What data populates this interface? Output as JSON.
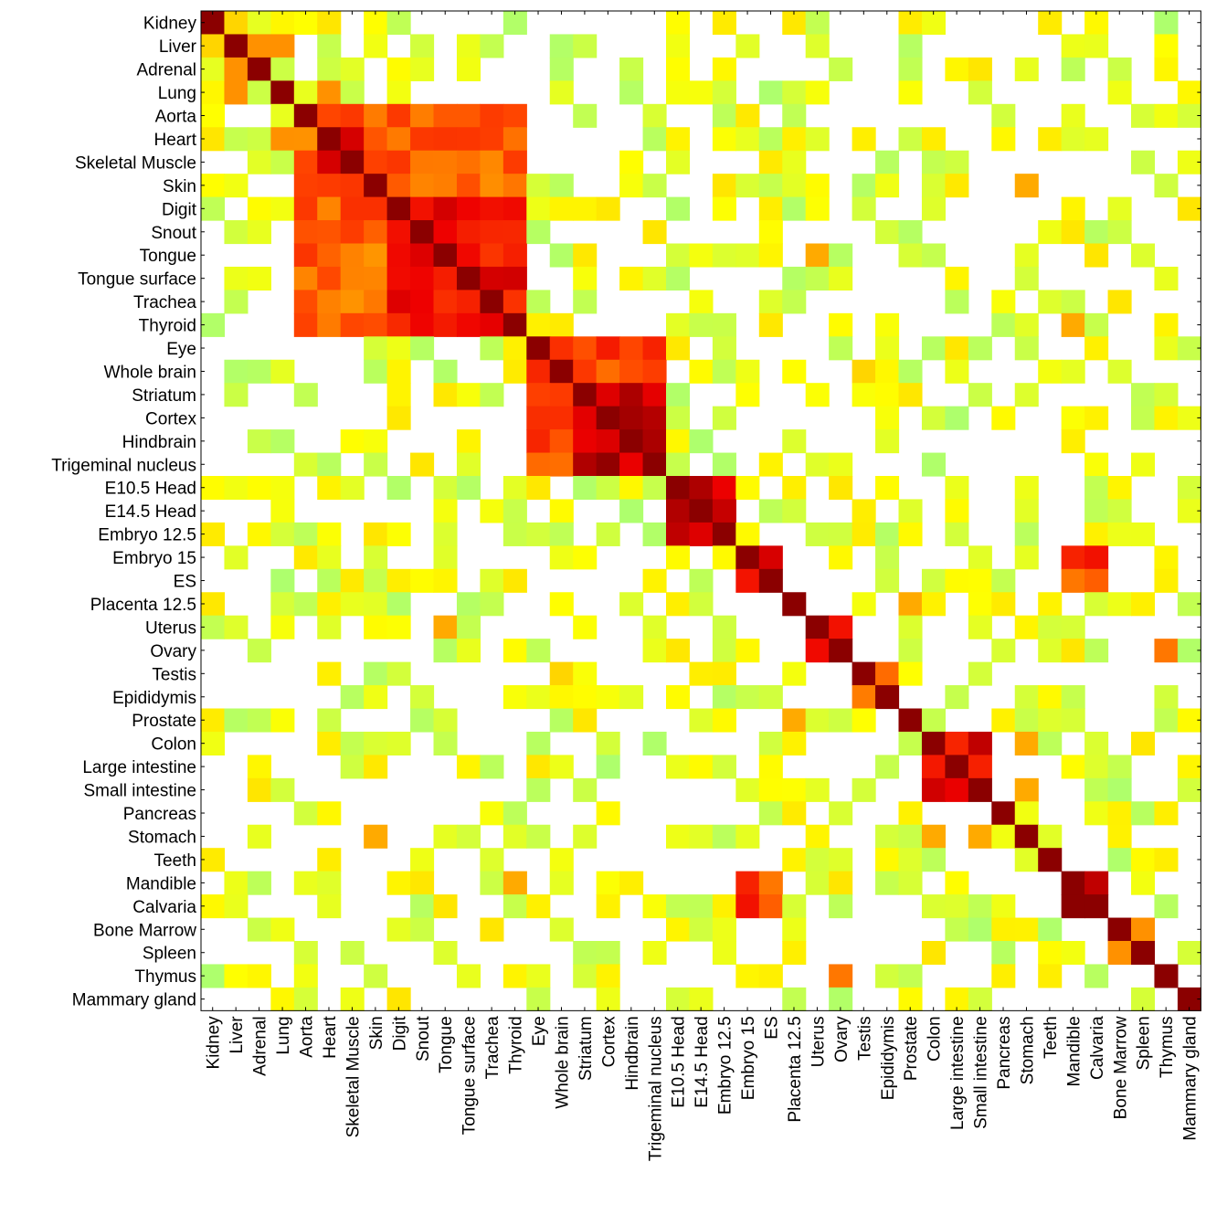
{
  "chart_data": {
    "type": "heatmap",
    "title": "",
    "xlabel": "",
    "ylabel": "",
    "labels": [
      "Kidney",
      "Liver",
      "Adrenal",
      "Lung",
      "Aorta",
      "Heart",
      "Skeletal Muscle",
      "Skin",
      "Digit",
      "Snout",
      "Tongue",
      "Tongue surface",
      "Trachea",
      "Thyroid",
      "Eye",
      "Whole brain",
      "Striatum",
      "Cortex",
      "Hindbrain",
      "Trigeminal nucleus",
      "E10.5 Head",
      "E14.5 Head",
      "Embryo 12.5",
      "Embryo 15",
      "ES",
      "Placenta 12.5",
      "Uterus",
      "Ovary",
      "Testis",
      "Epididymis",
      "Prostate",
      "Colon",
      "Large intestine",
      "Small intestine",
      "Pancreas",
      "Stomach",
      "Teeth",
      "Mandible",
      "Calvaria",
      "Bone Marrow",
      "Spleen",
      "Thymus",
      "Mammary gland"
    ],
    "color_scale": [
      "#9aff88",
      "#ffff00",
      "#ffaa00",
      "#ff4400",
      "#ee0000",
      "#8b0000"
    ],
    "blank_color": "#ffffff",
    "grid": false,
    "legend": "none",
    "blocks": [
      {
        "start": 4,
        "end": 13,
        "value": 0.55
      },
      {
        "start": 8,
        "end": 13,
        "value": 0.75
      },
      {
        "start": 14,
        "end": 19,
        "value": 0.62
      },
      {
        "start": 16,
        "end": 19,
        "value": 0.9
      },
      {
        "start": 20,
        "end": 22,
        "value": 0.85
      },
      {
        "start": 23,
        "end": 24,
        "value": 0.85
      },
      {
        "start": 26,
        "end": 27,
        "value": 0.7
      },
      {
        "start": 28,
        "end": 29,
        "value": 0.6
      },
      {
        "start": 31,
        "end": 33,
        "value": 0.8
      },
      {
        "start": 37,
        "end": 38,
        "value": 1.0
      },
      {
        "start": 39,
        "end": 40,
        "value": 0.45
      }
    ],
    "strong_pairs": [
      {
        "a": "Kidney",
        "b": "Liver",
        "v": 0.3
      },
      {
        "a": "Liver",
        "b": "Adrenal",
        "v": 0.45
      },
      {
        "a": "Liver",
        "b": "Lung",
        "v": 0.45
      },
      {
        "a": "Heart",
        "b": "Skeletal Muscle",
        "v": 0.85
      },
      {
        "a": "Heart",
        "b": "Lung",
        "v": 0.45
      },
      {
        "a": "Skin",
        "b": "Stomach",
        "v": 0.4
      },
      {
        "a": "Embryo 15",
        "b": "Mandible",
        "v": 0.7
      },
      {
        "a": "Embryo 15",
        "b": "Calvaria",
        "v": 0.75
      },
      {
        "a": "ES",
        "b": "Mandible",
        "v": 0.5
      },
      {
        "a": "ES",
        "b": "Calvaria",
        "v": 0.55
      },
      {
        "a": "Ovary",
        "b": "Thymus",
        "v": 0.5
      },
      {
        "a": "Placenta 12.5",
        "b": "Prostate",
        "v": 0.4
      },
      {
        "a": "Colon",
        "b": "Stomach",
        "v": 0.4
      },
      {
        "a": "Small intestine",
        "b": "Stomach",
        "v": 0.4
      },
      {
        "a": "Thyroid",
        "b": "Mandible",
        "v": 0.4
      },
      {
        "a": "Bone Marrow",
        "b": "Spleen",
        "v": 0.45
      },
      {
        "a": "Whole brain",
        "b": "Testis",
        "v": 0.3
      },
      {
        "a": "Uterus",
        "b": "Tongue",
        "v": 0.4
      }
    ]
  }
}
